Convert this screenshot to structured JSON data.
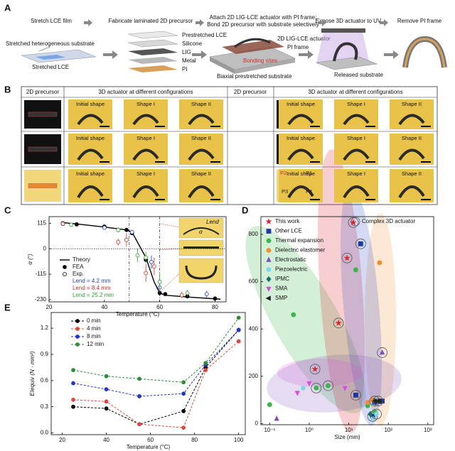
{
  "figure": {
    "panel_labels": [
      "A",
      "B",
      "C",
      "D",
      "E"
    ],
    "panel_a": {
      "steps": [
        "Stretch LCE film",
        "Fabricate laminated 2D precursor",
        [
          "Attach 2D LIG-LCE actuator with PI frame;",
          "Bond 2D precursor with substrate selectively"
        ],
        "Expose 3D actuator to UV",
        "Remove PI frame"
      ],
      "labels": {
        "substrate": "Stretched heterogeneous substrate",
        "lce": "Stretched LCE",
        "layers": [
          "Prestretched LCE",
          "Silicone",
          "LIG",
          "Metal",
          "PI"
        ],
        "actuator": "2D LIG-LCE actuator",
        "frame": "PI frame",
        "bonding": "Bonding sites",
        "biaxial": "Biaxial prestretched substrate",
        "released": "Released substrate"
      }
    },
    "panel_b": {
      "headers": [
        "2D precursor",
        "3D actuator at different configurations"
      ],
      "shapes": [
        "Initial shape",
        "Shape I",
        "Shape II"
      ],
      "points": [
        "P1",
        "P2",
        "P3",
        "P4"
      ]
    }
  },
  "chart_data": [
    {
      "type": "line",
      "ylabel": "α (°)",
      "xlabel": "Temperature (°C)",
      "xlim": [
        20,
        84
      ],
      "xticks": [
        20,
        40,
        60,
        80
      ],
      "ylim": [
        -240,
        145
      ],
      "yticks": [
        115,
        0,
        -115,
        -230
      ],
      "reference_x": [
        49,
        60
      ],
      "reference_y": [
        0
      ],
      "legend_extra": "Exp.",
      "inset_labels": [
        "Lend",
        "α"
      ],
      "series": [
        {
          "name": "Theory",
          "color": "#000000",
          "style": "line",
          "x": [
            25,
            30,
            40,
            48,
            50,
            55,
            58,
            60,
            62,
            70,
            82
          ],
          "values": [
            118,
            112,
            98,
            85,
            75,
            -40,
            -150,
            -200,
            -210,
            -218,
            -228
          ]
        },
        {
          "name": "FEA",
          "color": "#000000",
          "style": "filled",
          "x": [
            25,
            30,
            40,
            48,
            50,
            55,
            60,
            62,
            70,
            80
          ],
          "values": [
            115,
            110,
            100,
            85,
            70,
            -50,
            -200,
            -205,
            -215,
            -225
          ]
        },
        {
          "name": "Lend = 4.2 mm",
          "color": "#1f3fbf",
          "style": "open",
          "x": [
            25,
            40,
            50,
            57,
            60,
            77
          ],
          "values": [
            112,
            95,
            75,
            -60,
            -175,
            -205
          ],
          "errors": [
            8,
            10,
            10,
            30,
            25,
            15
          ]
        },
        {
          "name": "Lend = 8.4 mm",
          "color": "#d62728",
          "style": "open",
          "x": [
            25,
            45,
            48,
            55,
            58,
            68
          ],
          "values": [
            113,
            30,
            40,
            -110,
            -80,
            -210
          ],
          "errors": [
            6,
            15,
            30,
            40,
            40,
            15
          ]
        },
        {
          "name": "Lend = 25.2 mm",
          "color": "#2ca02c",
          "style": "open",
          "x": [
            28,
            45,
            52,
            55,
            60,
            70
          ],
          "values": [
            108,
            85,
            -30,
            -40,
            -150,
            -200
          ],
          "errors": [
            8,
            12,
            30,
            25,
            40,
            15
          ]
        }
      ]
    },
    {
      "type": "scatter",
      "xlabel": "Size (mm)",
      "xscale": "log",
      "xlim": [
        0.06,
        1400
      ],
      "xticks": [
        {
          "value": 0.1,
          "label": "10⁻¹"
        },
        {
          "value": 1,
          "label": "10⁰"
        },
        {
          "value": 10,
          "label": "10¹"
        },
        {
          "value": 100,
          "label": "10²"
        },
        {
          "value": 1000,
          "label": "10³"
        }
      ],
      "ylim": [
        -5,
        875
      ],
      "yticks": [
        0,
        200,
        400,
        600,
        800
      ],
      "annotation": "Complex 3D actuator",
      "series": [
        {
          "name": "This work",
          "color": "#d9262a",
          "marker": "star",
          "x": [
            1.4,
            5.5,
            9,
            13
          ],
          "values": [
            230,
            425,
            700,
            850
          ],
          "circled": [
            true,
            true,
            true,
            true
          ]
        },
        {
          "name": "Other LCE",
          "color": "#1a3a9a",
          "marker": "square",
          "x": [
            20,
            15,
            45,
            40,
            70
          ],
          "values": [
            760,
            120,
            90,
            30,
            95
          ],
          "circled": [
            true,
            true,
            false,
            true,
            false
          ]
        },
        {
          "name": "Thermal expansion",
          "color": "#3cb44b",
          "marker": "circle",
          "x": [
            0.1,
            0.4,
            1.5,
            3,
            15,
            30,
            45
          ],
          "values": [
            80,
            460,
            150,
            160,
            650,
            75,
            50
          ],
          "circled": [
            false,
            false,
            true,
            true,
            false,
            false,
            false
          ]
        },
        {
          "name": "Dielectric elastomer",
          "color": "#f28e2b",
          "marker": "circle",
          "x": [
            60,
            40,
            30
          ],
          "values": [
            680,
            100,
            90
          ],
          "circled": [
            false,
            false,
            false
          ]
        },
        {
          "name": "Electrostatic",
          "color": "#7b4fbf",
          "marker": "triangle",
          "x": [
            0.15,
            70,
            60
          ],
          "values": [
            20,
            300,
            90
          ],
          "circled": [
            false,
            true,
            false
          ]
        },
        {
          "name": "Piezoelectric",
          "color": "#7fd8e8",
          "marker": "circle",
          "x": [
            0.7,
            40,
            50
          ],
          "values": [
            150,
            20,
            40
          ],
          "circled": [
            false,
            false,
            true
          ]
        },
        {
          "name": "IPMC",
          "color": "#1b6f6a",
          "marker": "diamond",
          "x": [
            45,
            55,
            35
          ],
          "values": [
            95,
            95,
            40
          ],
          "circled": [
            true,
            false,
            false
          ]
        },
        {
          "name": "SMA",
          "color": "#d64fd6",
          "marker": "triangle-down",
          "x": [
            1,
            0.5,
            8
          ],
          "values": [
            170,
            130,
            150
          ],
          "circled": [
            false,
            false,
            false
          ]
        },
        {
          "name": "SMP",
          "color": "#222222",
          "marker": "triangle-left",
          "x": [
            45,
            55,
            60
          ],
          "values": [
            95,
            95,
            95
          ],
          "circled": [
            false,
            true,
            false
          ]
        }
      ]
    },
    {
      "type": "line",
      "xlabel": "Temperature (°C)",
      "ylabel": "EIequiv (N · mm²)",
      "xlim": [
        15,
        103
      ],
      "xticks": [
        20,
        40,
        60,
        80,
        100
      ],
      "ylim": [
        -0.02,
        1.38
      ],
      "yticks": [
        {
          "value": 0,
          "label": "0.0"
        },
        0.3,
        0.6,
        0.9,
        1.2
      ],
      "series": [
        {
          "name": "0 min",
          "color": "#000000",
          "style": "dashed",
          "x": [
            25,
            40,
            55,
            75,
            85,
            100
          ],
          "values": [
            0.3,
            0.28,
            0.1,
            0.25,
            0.75,
            1.18
          ]
        },
        {
          "name": "4 min",
          "color": "#e0463c",
          "style": "dashed",
          "x": [
            25,
            40,
            55,
            75,
            85,
            100
          ],
          "values": [
            0.38,
            0.36,
            0.1,
            0.06,
            0.72,
            1.05
          ]
        },
        {
          "name": "8 min",
          "color": "#2432c8",
          "style": "dashed",
          "x": [
            25,
            40,
            55,
            75,
            85,
            100
          ],
          "values": [
            0.57,
            0.5,
            0.42,
            0.45,
            0.78,
            1.18
          ]
        },
        {
          "name": "12 min",
          "color": "#2e8b3a",
          "style": "dashed",
          "x": [
            25,
            40,
            55,
            75,
            85,
            100
          ],
          "values": [
            0.72,
            0.65,
            0.62,
            0.58,
            0.8,
            1.32
          ]
        }
      ]
    }
  ]
}
